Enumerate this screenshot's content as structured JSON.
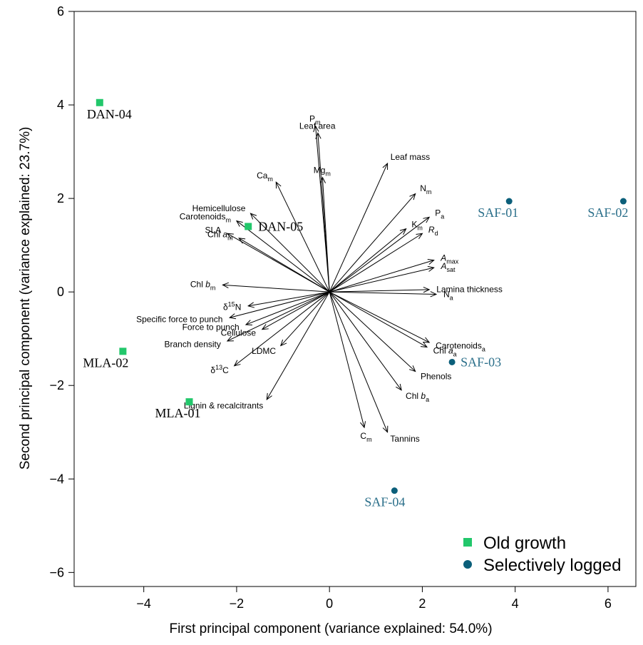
{
  "chart_data": {
    "type": "scatter",
    "title": "",
    "xlabel": "First principal component (variance explained: 54.0%)",
    "ylabel": "Second principal component (variance explained: 23.7%)",
    "xlim": [
      -5.5,
      6.6
    ],
    "ylim": [
      -6.3,
      6.0
    ],
    "x_ticks": [
      -4,
      -2,
      0,
      2,
      4,
      6
    ],
    "y_ticks": [
      -6,
      -4,
      -2,
      0,
      2,
      4,
      6
    ],
    "grid": false,
    "legend_position": "bottom-right",
    "series": [
      {
        "name": "Old growth",
        "color": "#22c76b",
        "marker": "square",
        "label_color": "#000000",
        "points": [
          {
            "label": "DAN-04",
            "x": -4.95,
            "y": 4.05
          },
          {
            "label": "DAN-05",
            "x": -1.75,
            "y": 1.4
          },
          {
            "label": "MLA-02",
            "x": -4.45,
            "y": -1.27
          },
          {
            "label": "MLA-01",
            "x": -3.02,
            "y": -2.35
          }
        ]
      },
      {
        "name": "Selectively logged",
        "color": "#0b5f7a",
        "marker": "circle",
        "label_color": "#2b6f8a",
        "points": [
          {
            "label": "SAF-01",
            "x": 3.87,
            "y": 1.94
          },
          {
            "label": "SAF-02",
            "x": 6.33,
            "y": 1.94
          },
          {
            "label": "SAF-03",
            "x": 2.64,
            "y": -1.5
          },
          {
            "label": "SAF-04",
            "x": 1.4,
            "y": -4.25
          }
        ]
      }
    ],
    "loadings": [
      {
        "label": "P",
        "sub": "m",
        "x": -0.3,
        "y": 3.55
      },
      {
        "label": "Leaf area",
        "sub": "",
        "x": -0.25,
        "y": 3.4
      },
      {
        "label": "Leaf mass",
        "sub": "",
        "x": 1.25,
        "y": 2.75
      },
      {
        "label": "Mg",
        "sub": "m",
        "x": -0.15,
        "y": 2.45
      },
      {
        "label": "Ca",
        "sub": "m",
        "x": -1.15,
        "y": 2.35
      },
      {
        "label": "N",
        "sub": "m",
        "x": 1.85,
        "y": 2.1
      },
      {
        "label": "Hemicellulose",
        "sub": "",
        "x": -1.7,
        "y": 1.68
      },
      {
        "label": "P",
        "sub": "a",
        "x": 2.15,
        "y": 1.6
      },
      {
        "label": "Carotenoids",
        "sub": "m",
        "x": -2.0,
        "y": 1.52
      },
      {
        "label": "K",
        "sub": "m",
        "x": 1.65,
        "y": 1.35
      },
      {
        "label": "SLA",
        "sub": "",
        "x": -2.2,
        "y": 1.25
      },
      {
        "label": "R",
        "sub": "d",
        "x": 2.0,
        "y": 1.25
      },
      {
        "label": "Chl a",
        "sub": "m",
        "x": -1.95,
        "y": 1.15
      },
      {
        "label": "A",
        "sub": "max",
        "x": 2.25,
        "y": 0.68
      },
      {
        "label": "A",
        "sub": "sat",
        "x": 2.25,
        "y": 0.52
      },
      {
        "label": "Chl b",
        "sub": "m",
        "x": -2.3,
        "y": 0.15
      },
      {
        "label": "Lamina thickness",
        "sub": "",
        "x": 2.15,
        "y": 0.05
      },
      {
        "label": "N",
        "sub": "a",
        "x": 2.3,
        "y": -0.05
      },
      {
        "label": "δ15N",
        "sub": "",
        "x": -1.75,
        "y": -0.3
      },
      {
        "label": "Specific force to punch",
        "sub": "",
        "x": -2.15,
        "y": -0.55
      },
      {
        "label": "Force to punch",
        "sub": "",
        "x": -1.8,
        "y": -0.7
      },
      {
        "label": "Cellulose",
        "sub": "",
        "x": -1.45,
        "y": -0.8
      },
      {
        "label": "Branch density",
        "sub": "",
        "x": -2.2,
        "y": -1.05
      },
      {
        "label": "LDMC",
        "sub": "",
        "x": -1.05,
        "y": -1.15
      },
      {
        "label": "Carotenoids",
        "sub": "a",
        "x": 2.15,
        "y": -1.08
      },
      {
        "label": "Chl a",
        "sub": "a",
        "x": 2.1,
        "y": -1.18
      },
      {
        "label": "δ13C",
        "sub": "",
        "x": -2.05,
        "y": -1.58
      },
      {
        "label": "Phenols",
        "sub": "",
        "x": 1.85,
        "y": -1.7
      },
      {
        "label": "Chl b",
        "sub": "a",
        "x": 1.55,
        "y": -2.1
      },
      {
        "label": "Lignin & recalcitrants",
        "sub": "",
        "x": -1.35,
        "y": -2.3
      },
      {
        "label": "C",
        "sub": "m",
        "x": 0.75,
        "y": -2.9
      },
      {
        "label": "Tannins",
        "sub": "",
        "x": 1.25,
        "y": -3.0
      }
    ]
  }
}
